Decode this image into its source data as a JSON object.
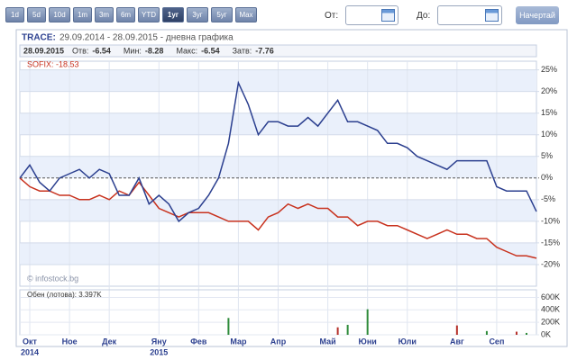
{
  "toolbar": {
    "ranges": [
      "1d",
      "5d",
      "10d",
      "1m",
      "3m",
      "6m",
      "YTD",
      "1уг",
      "3уг",
      "5уг",
      "Max"
    ],
    "selected": "1уг",
    "from_label": "От:",
    "to_label": "До:",
    "submit": "Начертай"
  },
  "chart_data": {
    "type": "line",
    "header_symbol": "TRACE:",
    "header_range": "29.09.2014 - 28.09.2015 - дневна графика",
    "quote_date": "28.09.2015",
    "quote": [
      {
        "label": "Отв:",
        "value": -6.54
      },
      {
        "label": "Мин:",
        "value": -8.28
      },
      {
        "label": "Макс:",
        "value": -6.54
      },
      {
        "label": "Затв:",
        "value": -7.76
      }
    ],
    "watermark": "© infostock.bg",
    "categories": [
      null,
      "Окт",
      null,
      null,
      null,
      "Ное",
      null,
      null,
      null,
      "Дек",
      null,
      null,
      null,
      null,
      "Яну",
      null,
      null,
      null,
      "Фев",
      null,
      null,
      null,
      "Мар",
      null,
      null,
      null,
      "Апр",
      null,
      null,
      null,
      null,
      "Май",
      null,
      null,
      null,
      "Юни",
      null,
      null,
      null,
      "Юли",
      null,
      null,
      null,
      null,
      "Авг",
      null,
      null,
      null,
      "Сеп",
      null,
      null,
      null,
      null
    ],
    "category_years": [
      null,
      "2014",
      null,
      null,
      null,
      null,
      null,
      null,
      null,
      null,
      null,
      null,
      null,
      null,
      "2015",
      null,
      null,
      null,
      null,
      null,
      null,
      null,
      null,
      null,
      null,
      null,
      null,
      null,
      null,
      null,
      null,
      null,
      null,
      null,
      null,
      null,
      null,
      null,
      null,
      null,
      null,
      null,
      null,
      null,
      null,
      null,
      null,
      null,
      null,
      null,
      null,
      null,
      null
    ],
    "series": [
      {
        "color": "#2b3f8f",
        "values": [
          0,
          3,
          -1,
          -3,
          0,
          1,
          2,
          0,
          2,
          1,
          -4,
          -4,
          0,
          -6,
          -4,
          -6,
          -10,
          -8,
          -7,
          -4,
          0,
          8,
          22,
          17,
          10,
          13,
          13,
          12,
          12,
          14,
          12,
          15,
          18,
          13,
          13,
          12,
          11,
          8,
          8,
          7,
          5,
          4,
          3,
          2,
          4,
          4,
          4,
          4,
          -2,
          -3,
          -3,
          -3,
          -7.76
        ]
      },
      {
        "name": "SOFIX: -18.53",
        "color": "#c8321e",
        "values": [
          0,
          -2,
          -3,
          -3,
          -4,
          -4,
          -5,
          -5,
          -4,
          -5,
          -3,
          -4,
          -1,
          -4,
          -7,
          -8,
          -9,
          -8,
          -8,
          -8,
          -9,
          -10,
          -10,
          -10,
          -12,
          -9,
          -8,
          -6,
          -7,
          -6,
          -7,
          -7,
          -9,
          -9,
          -11,
          -10,
          -10,
          -11,
          -11,
          -12,
          -13,
          -14,
          -13,
          -12,
          -13,
          -13,
          -14,
          -14,
          -16,
          -17,
          -18,
          -18,
          -18.53
        ]
      }
    ],
    "ylim": [
      -25,
      27
    ],
    "yticks": [
      {
        "value": 25,
        "label": "25%"
      },
      {
        "value": 20,
        "label": "20%"
      },
      {
        "value": 15,
        "label": "15%"
      },
      {
        "value": 10,
        "label": "10%"
      },
      {
        "value": 5,
        "label": "5%"
      },
      {
        "value": 0,
        "label": "0%"
      },
      {
        "value": -5,
        "label": "-5%"
      },
      {
        "value": -10,
        "label": "-10%"
      },
      {
        "value": -15,
        "label": "-15%"
      },
      {
        "value": -20,
        "label": "-20%"
      }
    ],
    "volume_label": "Обен (лотова): 3.397K",
    "volume_series": [
      {
        "color": "#2e8b3a",
        "values": [
          null,
          null,
          null,
          null,
          null,
          null,
          null,
          null,
          null,
          null,
          null,
          null,
          null,
          null,
          null,
          null,
          null,
          null,
          null,
          null,
          null,
          270000,
          null,
          null,
          null,
          null,
          null,
          null,
          null,
          null,
          null,
          null,
          null,
          160000,
          null,
          410000,
          null,
          null,
          null,
          null,
          null,
          null,
          null,
          null,
          null,
          null,
          null,
          60000,
          null,
          null,
          null,
          30000,
          null
        ]
      },
      {
        "color": "#b5302a",
        "values": [
          null,
          null,
          null,
          null,
          null,
          null,
          null,
          null,
          null,
          null,
          null,
          null,
          null,
          null,
          null,
          null,
          null,
          null,
          null,
          null,
          null,
          null,
          null,
          null,
          null,
          null,
          null,
          null,
          null,
          null,
          null,
          null,
          120000,
          null,
          null,
          null,
          null,
          null,
          null,
          null,
          null,
          null,
          null,
          null,
          150000,
          null,
          null,
          null,
          null,
          null,
          50000,
          null,
          null
        ]
      }
    ],
    "vlim": [
      0,
      650000
    ],
    "vticks": [
      {
        "value": 600000,
        "label": "600K"
      },
      {
        "value": 400000,
        "label": "400K"
      },
      {
        "value": 200000,
        "label": "200K"
      },
      {
        "value": 0,
        "label": "0K"
      }
    ]
  }
}
